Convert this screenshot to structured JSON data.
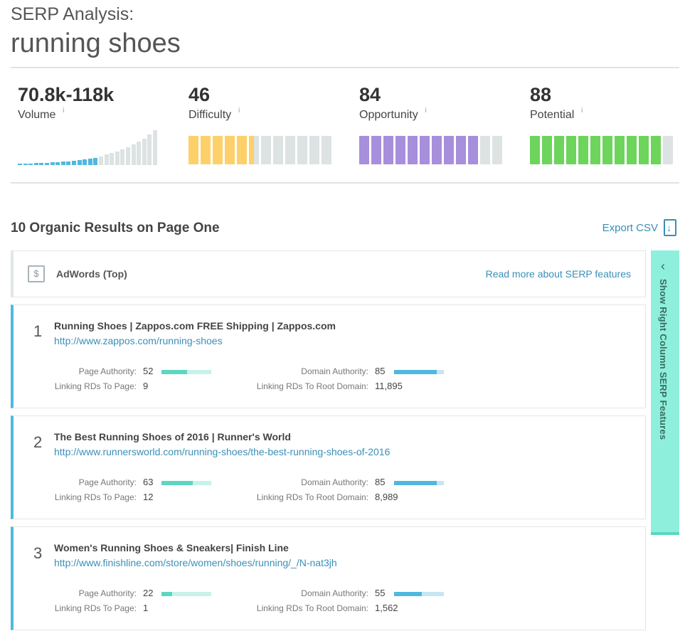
{
  "header": {
    "subtitle": "SERP Analysis:",
    "keyword": "running shoes"
  },
  "metrics": [
    {
      "id": "volume",
      "value": "70.8k-118k",
      "label": "Volume",
      "info": "i"
    },
    {
      "id": "difficulty",
      "value": "46",
      "label": "Difficulty",
      "info": "i",
      "segments_total": 12,
      "segments_filled": 5.5,
      "color": "#fdd06a"
    },
    {
      "id": "opportunity",
      "value": "84",
      "label": "Opportunity",
      "info": "i",
      "segments_total": 12,
      "segments_filled": 10,
      "color": "#a78fdb"
    },
    {
      "id": "potential",
      "value": "88",
      "label": "Potential",
      "info": "i",
      "segments_total": 12,
      "segments_filled": 11,
      "color": "#6dd45c"
    }
  ],
  "volume_spark": {
    "filled_color": "#4fb8df",
    "empty_color": "#dde2e3",
    "filled_count": 15,
    "levels": [
      0.04,
      0.04,
      0.04,
      0.05,
      0.05,
      0.06,
      0.07,
      0.08,
      0.09,
      0.1,
      0.12,
      0.14,
      0.16,
      0.18,
      0.2,
      0.24,
      0.28,
      0.32,
      0.37,
      0.42,
      0.48,
      0.55,
      0.63,
      0.72,
      0.82,
      0.94
    ]
  },
  "results_section": {
    "title": "10 Organic Results on Page One",
    "export_label": "Export CSV"
  },
  "adwords": {
    "label": "AdWords (Top)",
    "link": "Read more about SERP features",
    "icon": "dollar-icon"
  },
  "stat_labels": {
    "pa": "Page Authority:",
    "da": "Domain Authority:",
    "lrp": "Linking RDs To Page:",
    "lrd": "Linking RDs To Root Domain:"
  },
  "results": [
    {
      "rank": "1",
      "title": "Running Shoes | Zappos.com FREE Shipping | Zappos.com",
      "url": "http://www.zappos.com/running-shoes",
      "pa": "52",
      "da": "85",
      "lrp": "9",
      "lrd": "11,895",
      "pa_frac": 0.52,
      "da_frac": 0.85
    },
    {
      "rank": "2",
      "title": "The Best Running Shoes of 2016 | Runner's World",
      "url": "http://www.runnersworld.com/running-shoes/the-best-running-shoes-of-2016",
      "pa": "63",
      "da": "85",
      "lrp": "12",
      "lrd": "8,989",
      "pa_frac": 0.63,
      "da_frac": 0.85
    },
    {
      "rank": "3",
      "title": "Women's Running Shoes & Sneakers| Finish Line",
      "url": "http://www.finishline.com/store/women/shoes/running/_/N-nat3jh",
      "pa": "22",
      "da": "55",
      "lrp": "1",
      "lrd": "1,562",
      "pa_frac": 0.22,
      "da_frac": 0.55
    }
  ],
  "side_tab": {
    "label": "Show Right Column SERP Features",
    "icon": "chevron-left-icon"
  }
}
